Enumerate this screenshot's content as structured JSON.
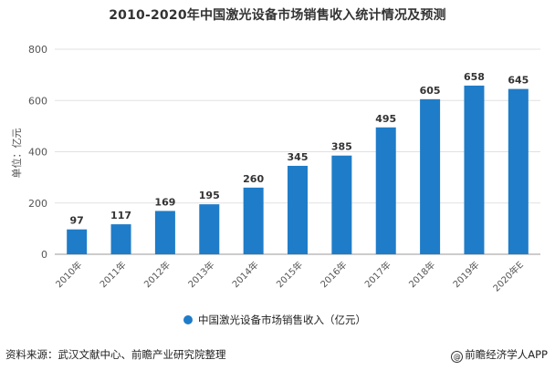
{
  "chart_data": {
    "type": "bar",
    "title": "2010-2020年中国激光设备市场销售收入统计情况及预测",
    "ylabel": "单位：亿元",
    "xlabel": "",
    "categories": [
      "2010年",
      "2011年",
      "2012年",
      "2013年",
      "2014年",
      "2015年",
      "2016年",
      "2017年",
      "2018年",
      "2019年",
      "2020年E"
    ],
    "series": [
      {
        "name": "中国激光设备市场销售收入（亿元）",
        "values": [
          97,
          117,
          169,
          195,
          260,
          345,
          385,
          495,
          605,
          658,
          645
        ],
        "color": "#1f7cc8"
      }
    ],
    "ylim": [
      0,
      800
    ],
    "yticks": [
      0,
      200,
      400,
      600,
      800
    ],
    "grid": true,
    "legend_position": "bottom"
  },
  "footer": {
    "source": "资料来源：武汉文献中心、前瞻产业研究院整理",
    "credit_icon": "@",
    "credit": "前瞻经济学人APP"
  }
}
